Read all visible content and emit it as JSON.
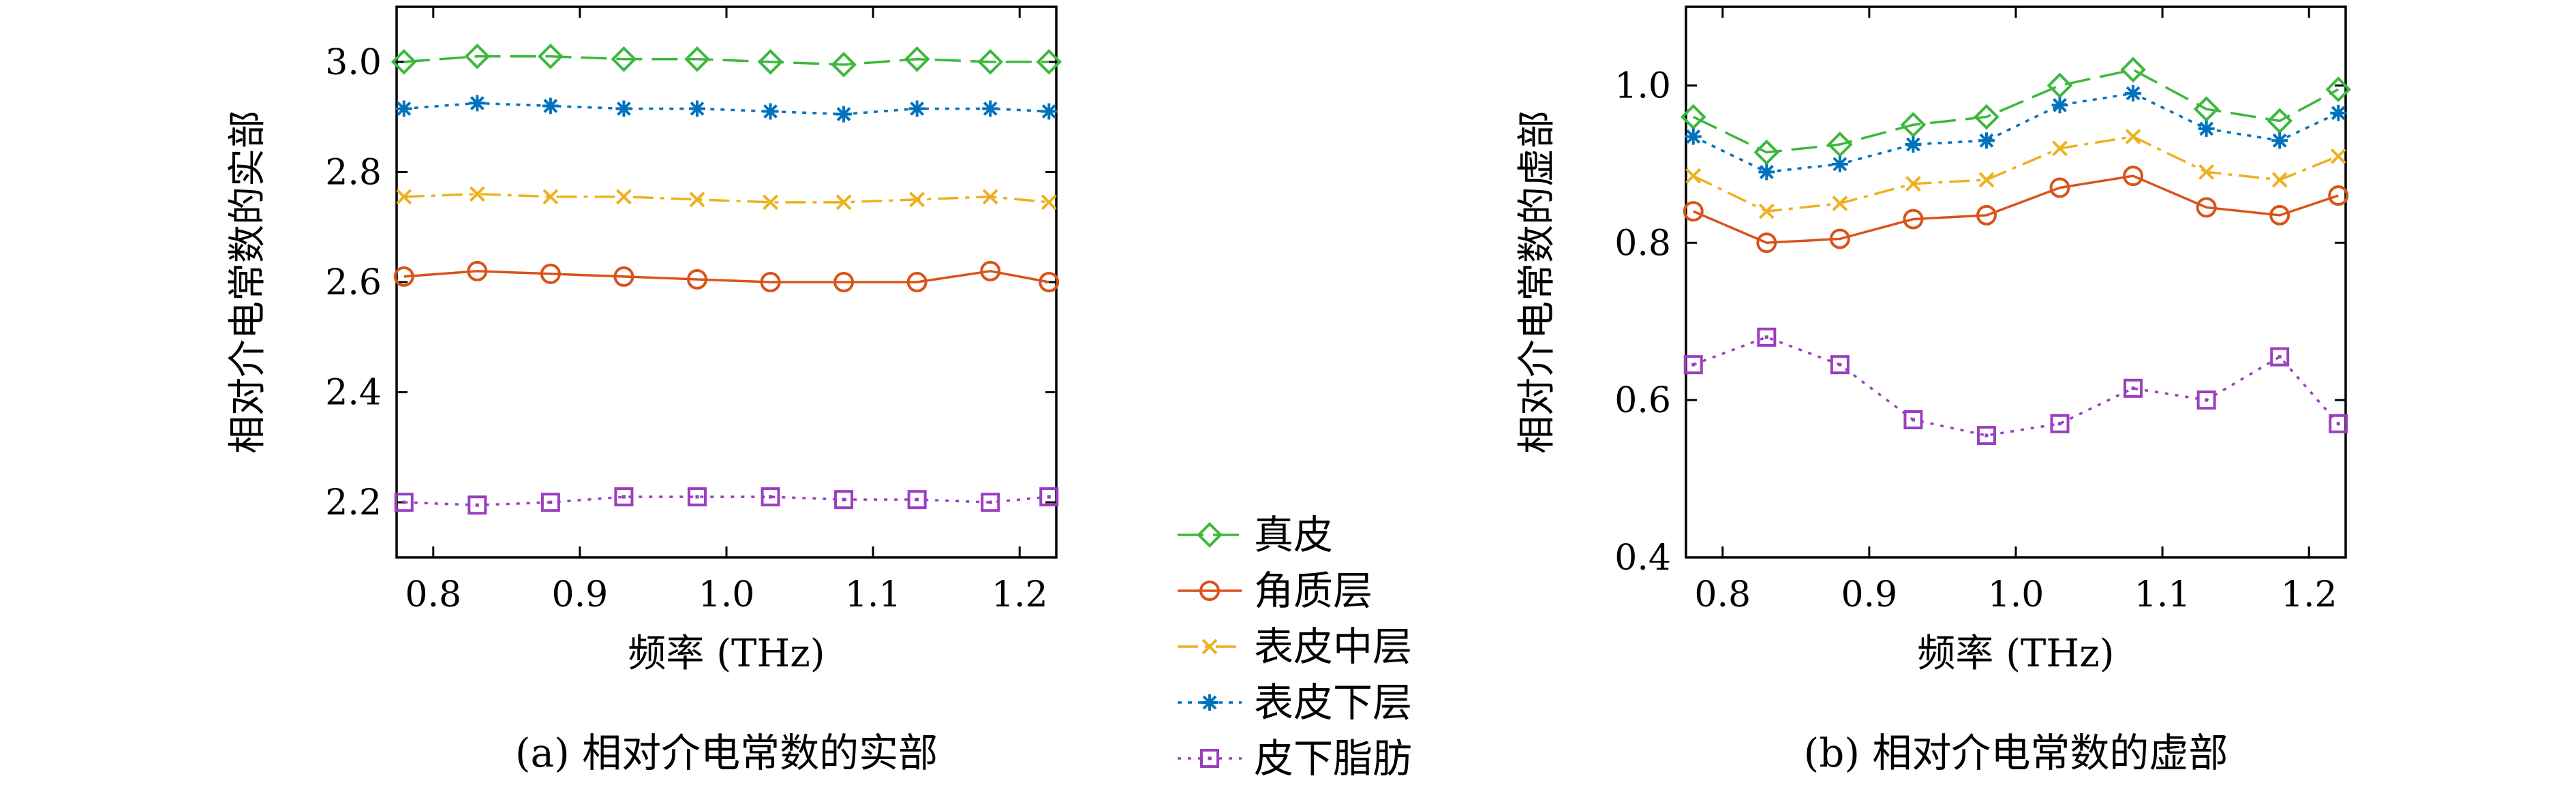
{
  "series_style": [
    {
      "name": "真皮",
      "color": "#3cb83c",
      "dash": "38,14",
      "marker": "diamond"
    },
    {
      "name": "角质层",
      "color": "#d95319",
      "dash": "",
      "marker": "circle"
    },
    {
      "name": "表皮中层",
      "color": "#edb120",
      "dash": "30,10,6,10",
      "marker": "x"
    },
    {
      "name": "表皮下层",
      "color": "#0072bd",
      "dash": "6,9",
      "marker": "star"
    },
    {
      "name": "皮下脂肪",
      "color": "#9b3ec0",
      "dash": "5,10",
      "marker": "square"
    }
  ],
  "chart_data": [
    {
      "type": "line",
      "caption": "(a) 相对介电常数的实部",
      "xlabel": "频率 (THz)",
      "ylabel": "相对介电常数的实部",
      "xlim": [
        0.775,
        1.225
      ],
      "ylim": [
        2.1,
        3.1
      ],
      "xticks": [
        "0.8",
        "0.9",
        "1.0",
        "1.1",
        "1.2"
      ],
      "yticks": [
        "2.2",
        "2.4",
        "2.6",
        "2.8",
        "3.0"
      ],
      "x": [
        0.78,
        0.83,
        0.88,
        0.93,
        0.98,
        1.03,
        1.08,
        1.13,
        1.18,
        1.22
      ],
      "series": [
        {
          "name": "真皮",
          "values": [
            3.0,
            3.01,
            3.01,
            3.005,
            3.005,
            3.0,
            2.995,
            3.005,
            3.0,
            3.0
          ]
        },
        {
          "name": "角质层",
          "values": [
            2.61,
            2.62,
            2.615,
            2.61,
            2.605,
            2.6,
            2.6,
            2.6,
            2.62,
            2.6
          ]
        },
        {
          "name": "表皮中层",
          "values": [
            2.755,
            2.76,
            2.755,
            2.755,
            2.75,
            2.745,
            2.745,
            2.75,
            2.755,
            2.745
          ]
        },
        {
          "name": "表皮下层",
          "values": [
            2.915,
            2.925,
            2.92,
            2.915,
            2.915,
            2.91,
            2.905,
            2.915,
            2.915,
            2.91
          ]
        },
        {
          "name": "皮下脂肪",
          "values": [
            2.2,
            2.195,
            2.2,
            2.21,
            2.21,
            2.21,
            2.205,
            2.205,
            2.2,
            2.21
          ]
        }
      ]
    },
    {
      "type": "line",
      "caption": "(b) 相对介电常数的虚部",
      "xlabel": "频率 (THz)",
      "ylabel": "相对介电常数的虚部",
      "xlim": [
        0.775,
        1.225
      ],
      "ylim": [
        0.4,
        1.1
      ],
      "xticks": [
        "0.8",
        "0.9",
        "1.0",
        "1.1",
        "1.2"
      ],
      "yticks": [
        "0.4",
        "0.6",
        "0.8",
        "1.0"
      ],
      "x": [
        0.78,
        0.83,
        0.88,
        0.93,
        0.98,
        1.03,
        1.08,
        1.13,
        1.18,
        1.22
      ],
      "series": [
        {
          "name": "真皮",
          "values": [
            0.96,
            0.915,
            0.925,
            0.95,
            0.96,
            1.0,
            1.02,
            0.97,
            0.955,
            0.995
          ]
        },
        {
          "name": "角质层",
          "values": [
            0.84,
            0.8,
            0.805,
            0.83,
            0.835,
            0.87,
            0.885,
            0.845,
            0.835,
            0.86
          ]
        },
        {
          "name": "表皮中层",
          "values": [
            0.885,
            0.84,
            0.85,
            0.875,
            0.88,
            0.92,
            0.935,
            0.89,
            0.88,
            0.91
          ]
        },
        {
          "name": "表皮下层",
          "values": [
            0.935,
            0.89,
            0.9,
            0.925,
            0.93,
            0.975,
            0.99,
            0.945,
            0.93,
            0.965
          ]
        },
        {
          "name": "皮下脂肪",
          "values": [
            0.645,
            0.68,
            0.645,
            0.575,
            0.555,
            0.57,
            0.615,
            0.6,
            0.655,
            0.57
          ]
        }
      ]
    }
  ]
}
